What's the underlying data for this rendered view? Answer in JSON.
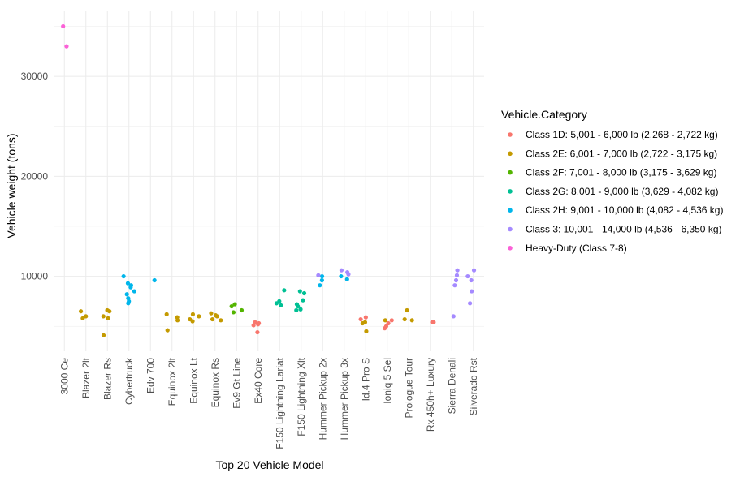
{
  "chart_data": {
    "type": "scatter",
    "xlabel": "Top 20 Vehicle Model",
    "ylabel": "Vehicle weight (tons)",
    "ylim": [
      2500,
      36500
    ],
    "yticks": [
      10000,
      20000,
      30000
    ],
    "grid": true,
    "legend": {
      "title": "Vehicle.Category",
      "position": "right"
    },
    "categories": [
      "3000 Ce",
      "Blazer 2lt",
      "Blazer Rs",
      "Cybertruck",
      "Edv 700",
      "Equinox 2lt",
      "Equinox Lt",
      "Equinox Rs",
      "Ev9 Gt Line",
      "Ex40 Core",
      "F150 Lightning Lariat",
      "F150 Lightning Xlt",
      "Hummer Pickup 2x",
      "Hummer Pickup 3x",
      "Id.4 Pro S",
      "Ioniq 5 Sel",
      "Prologue Tour",
      "Rx 450h+ Luxury",
      "Sierra Denali",
      "Silverado Rst"
    ],
    "series": [
      {
        "name": "Class 1D: 5,001 - 6,000 lb (2,268 - 2,722 kg)",
        "color": "#F8766D",
        "points": [
          {
            "x": "Ex40 Core",
            "y": 5200
          },
          {
            "x": "Ex40 Core",
            "y": 5300
          },
          {
            "x": "Ex40 Core",
            "y": 5100
          },
          {
            "x": "Ex40 Core",
            "y": 5400
          },
          {
            "x": "Ex40 Core",
            "y": 4400
          },
          {
            "x": "Id.4 Pro S",
            "y": 5900
          },
          {
            "x": "Id.4 Pro S",
            "y": 5700
          },
          {
            "x": "Ioniq 5 Sel",
            "y": 5600
          },
          {
            "x": "Ioniq 5 Sel",
            "y": 5300
          },
          {
            "x": "Ioniq 5 Sel",
            "y": 5000
          },
          {
            "x": "Ioniq 5 Sel",
            "y": 4800
          },
          {
            "x": "Rx 450h+ Luxury",
            "y": 5400
          },
          {
            "x": "Rx 450h+ Luxury",
            "y": 5400
          }
        ]
      },
      {
        "name": "Class 2E: 6,001 - 7,000 lb (2,722 - 3,175 kg)",
        "color": "#C49A00",
        "points": [
          {
            "x": "Blazer 2lt",
            "y": 6500
          },
          {
            "x": "Blazer 2lt",
            "y": 6000
          },
          {
            "x": "Blazer 2lt",
            "y": 5800
          },
          {
            "x": "Blazer Rs",
            "y": 6500
          },
          {
            "x": "Blazer Rs",
            "y": 6000
          },
          {
            "x": "Blazer Rs",
            "y": 5800
          },
          {
            "x": "Blazer Rs",
            "y": 6600
          },
          {
            "x": "Blazer Rs",
            "y": 4100
          },
          {
            "x": "Equinox 2lt",
            "y": 6200
          },
          {
            "x": "Equinox 2lt",
            "y": 5900
          },
          {
            "x": "Equinox 2lt",
            "y": 5600
          },
          {
            "x": "Equinox 2lt",
            "y": 4600
          },
          {
            "x": "Equinox Lt",
            "y": 6200
          },
          {
            "x": "Equinox Lt",
            "y": 6000
          },
          {
            "x": "Equinox Lt",
            "y": 5700
          },
          {
            "x": "Equinox Lt",
            "y": 5500
          },
          {
            "x": "Equinox Rs",
            "y": 6100
          },
          {
            "x": "Equinox Rs",
            "y": 6000
          },
          {
            "x": "Equinox Rs",
            "y": 5700
          },
          {
            "x": "Equinox Rs",
            "y": 6300
          },
          {
            "x": "Equinox Rs",
            "y": 5600
          },
          {
            "x": "Id.4 Pro S",
            "y": 5400
          },
          {
            "x": "Id.4 Pro S",
            "y": 5300
          },
          {
            "x": "Id.4 Pro S",
            "y": 4500
          },
          {
            "x": "Ioniq 5 Sel",
            "y": 5600
          },
          {
            "x": "Prologue Tour",
            "y": 5700
          },
          {
            "x": "Prologue Tour",
            "y": 5600
          },
          {
            "x": "Prologue Tour",
            "y": 6600
          }
        ]
      },
      {
        "name": "Class 2F: 7,001 - 8,000 lb (3,175 - 3,629 kg)",
        "color": "#53B400",
        "points": [
          {
            "x": "Ev9 Gt Line",
            "y": 7200
          },
          {
            "x": "Ev9 Gt Line",
            "y": 7000
          },
          {
            "x": "Ev9 Gt Line",
            "y": 6600
          },
          {
            "x": "Ev9 Gt Line",
            "y": 6400
          }
        ]
      },
      {
        "name": "Class 2G: 8,001 - 9,000 lb (3,629 - 4,082 kg)",
        "color": "#00C094",
        "points": [
          {
            "x": "F150 Lightning Lariat",
            "y": 8600
          },
          {
            "x": "F150 Lightning Lariat",
            "y": 7500
          },
          {
            "x": "F150 Lightning Lariat",
            "y": 7300
          },
          {
            "x": "F150 Lightning Lariat",
            "y": 7100
          },
          {
            "x": "F150 Lightning Xlt",
            "y": 8500
          },
          {
            "x": "F150 Lightning Xlt",
            "y": 8300
          },
          {
            "x": "F150 Lightning Xlt",
            "y": 7600
          },
          {
            "x": "F150 Lightning Xlt",
            "y": 7200
          },
          {
            "x": "F150 Lightning Xlt",
            "y": 7000
          },
          {
            "x": "F150 Lightning Xlt",
            "y": 6700
          },
          {
            "x": "F150 Lightning Xlt",
            "y": 6600
          }
        ]
      },
      {
        "name": "Class 2H: 9,001 - 10,000 lb (4,082 - 4,536 kg)",
        "color": "#00B6EB",
        "points": [
          {
            "x": "Cybertruck",
            "y": 10000
          },
          {
            "x": "Cybertruck",
            "y": 9300
          },
          {
            "x": "Cybertruck",
            "y": 9100
          },
          {
            "x": "Cybertruck",
            "y": 8900
          },
          {
            "x": "Cybertruck",
            "y": 8500
          },
          {
            "x": "Cybertruck",
            "y": 8200
          },
          {
            "x": "Cybertruck",
            "y": 7800
          },
          {
            "x": "Cybertruck",
            "y": 7500
          },
          {
            "x": "Cybertruck",
            "y": 7300
          },
          {
            "x": "Edv 700",
            "y": 9600
          },
          {
            "x": "Hummer Pickup 2x",
            "y": 10000
          },
          {
            "x": "Hummer Pickup 2x",
            "y": 9600
          },
          {
            "x": "Hummer Pickup 2x",
            "y": 9100
          },
          {
            "x": "Hummer Pickup 3x",
            "y": 10000
          },
          {
            "x": "Hummer Pickup 3x",
            "y": 9700
          }
        ]
      },
      {
        "name": "Class 3: 10,001 - 14,000 lb (4,536 - 6,350 kg)",
        "color": "#A58AFF",
        "points": [
          {
            "x": "Hummer Pickup 2x",
            "y": 10100
          },
          {
            "x": "Hummer Pickup 3x",
            "y": 10600
          },
          {
            "x": "Hummer Pickup 3x",
            "y": 10400
          },
          {
            "x": "Hummer Pickup 3x",
            "y": 10200
          },
          {
            "x": "Sierra Denali",
            "y": 10600
          },
          {
            "x": "Sierra Denali",
            "y": 10100
          },
          {
            "x": "Sierra Denali",
            "y": 9600
          },
          {
            "x": "Sierra Denali",
            "y": 9100
          },
          {
            "x": "Sierra Denali",
            "y": 6000
          },
          {
            "x": "Silverado Rst",
            "y": 10600
          },
          {
            "x": "Silverado Rst",
            "y": 10000
          },
          {
            "x": "Silverado Rst",
            "y": 9600
          },
          {
            "x": "Silverado Rst",
            "y": 8500
          },
          {
            "x": "Silverado Rst",
            "y": 7300
          }
        ]
      },
      {
        "name": "Heavy-Duty (Class 7-8)",
        "color": "#FB61D7",
        "points": [
          {
            "x": "3000 Ce",
            "y": 35000
          },
          {
            "x": "3000 Ce",
            "y": 33000
          }
        ]
      }
    ]
  }
}
